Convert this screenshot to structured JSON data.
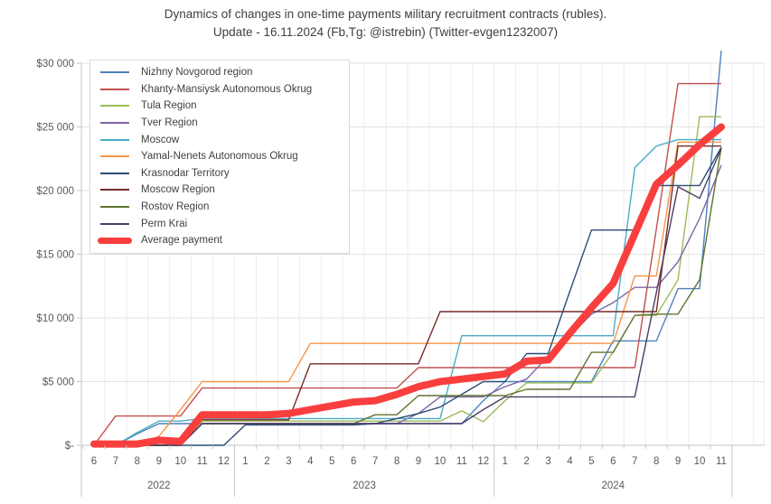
{
  "title": {
    "line1": "Dynamics of changes in one-time payments мilitary recruitment contracts (rubles).",
    "line2": "Update - 16.11.2024 (Fb,Tg: @istrebin) (Twitter-evgen1232007)"
  },
  "colors": {
    "grid_h": "#e3e3e3",
    "grid_v": "#ededed",
    "axis": "#c6c6c6",
    "axis_text": "#595959",
    "average_red": "#f93e3e"
  },
  "chart_data": {
    "type": "line",
    "title": "Dynamics of changes in one-time payments мilitary recruitment contracts (rubles). Update - 16.11.2024",
    "xlabel": "",
    "ylabel": "",
    "ylim": [
      0,
      30000
    ],
    "grid": true,
    "legend_position": "top-left",
    "y_axis": {
      "ticks": [
        {
          "label": "$30 000",
          "value": 30000
        },
        {
          "label": "$25 000",
          "value": 25000
        },
        {
          "label": "$20 000",
          "value": 20000
        },
        {
          "label": "$15 000",
          "value": 15000
        },
        {
          "label": "$10 000",
          "value": 10000
        },
        {
          "label": "$5 000",
          "value": 5000
        },
        {
          "label": "$-",
          "value": 0
        }
      ]
    },
    "x_axis": {
      "groups": [
        {
          "year": "2022",
          "months": [
            "6",
            "7",
            "8",
            "9",
            "10",
            "11",
            "12"
          ]
        },
        {
          "year": "2023",
          "months": [
            "1",
            "2",
            "3",
            "4",
            "5",
            "6",
            "7",
            "8",
            "9",
            "10",
            "11",
            "12"
          ]
        },
        {
          "year": "2024",
          "months": [
            "1",
            "2",
            "3",
            "4",
            "5",
            "6",
            "7",
            "8",
            "9",
            "10",
            "11"
          ]
        }
      ]
    },
    "series": [
      {
        "name": "Nizhny Novgorod region",
        "color": "#4f81bd",
        "thick": false,
        "values": [
          0,
          0,
          900,
          1700,
          1700,
          1700,
          1700,
          1700,
          1700,
          1700,
          1700,
          1700,
          1700,
          1700,
          1700,
          1700,
          1700,
          1700,
          3500,
          5000,
          5000,
          5000,
          5000,
          5000,
          8200,
          8200,
          8200,
          12300,
          12300,
          31000
        ]
      },
      {
        "name": "Khanty-Mansiysk Autonomous Okrug",
        "color": "#c0504d",
        "thick": false,
        "values": [
          0,
          2300,
          2300,
          2300,
          2300,
          4500,
          4500,
          4500,
          4500,
          4500,
          4500,
          4500,
          4500,
          4500,
          4500,
          6100,
          6100,
          6100,
          6100,
          6100,
          6100,
          6100,
          6100,
          6100,
          6100,
          6100,
          17000,
          28400,
          28400,
          28400
        ]
      },
      {
        "name": "Tula Region",
        "color": "#9bbb59",
        "thick": false,
        "values": [
          0,
          0,
          0,
          0,
          0,
          1900,
          1900,
          1900,
          1900,
          1900,
          1900,
          1900,
          1900,
          1900,
          1900,
          1900,
          1900,
          2700,
          1850,
          3500,
          4900,
          4900,
          4900,
          4900,
          7300,
          10200,
          10200,
          13000,
          25800,
          25800
        ]
      },
      {
        "name": "Tver Region",
        "color": "#8064a2",
        "thick": false,
        "values": [
          0,
          0,
          0,
          0,
          0,
          1700,
          1700,
          1700,
          1700,
          1700,
          1700,
          1700,
          1700,
          1700,
          1700,
          2500,
          3800,
          3800,
          3800,
          4600,
          5200,
          7000,
          8600,
          10300,
          11200,
          12400,
          12400,
          14400,
          17800,
          22000
        ]
      },
      {
        "name": "Moscow",
        "color": "#4bacc6",
        "thick": false,
        "values": [
          0,
          0,
          1000,
          1900,
          1900,
          2100,
          2100,
          2100,
          2100,
          2100,
          2100,
          2100,
          2100,
          2100,
          2100,
          2100,
          2100,
          8600,
          8600,
          8600,
          8600,
          8600,
          8600,
          8600,
          8600,
          21800,
          23500,
          24000,
          24000,
          24000
        ]
      },
      {
        "name": "Yamal-Nenets Autonomous Okrug",
        "color": "#f79646",
        "thick": false,
        "values": [
          0,
          0,
          0,
          700,
          2800,
          5000,
          5000,
          5000,
          5000,
          5000,
          8000,
          8000,
          8000,
          8000,
          8000,
          8000,
          8000,
          8000,
          8000,
          8000,
          8000,
          8000,
          8000,
          8000,
          8000,
          13300,
          13300,
          23800,
          23800,
          23800
        ]
      },
      {
        "name": "Krasnodar Territory",
        "color": "#2c4d75",
        "thick": false,
        "values": [
          0,
          0,
          0,
          0,
          0,
          0,
          0,
          1600,
          1600,
          1600,
          1600,
          1600,
          1600,
          1700,
          2100,
          2500,
          3000,
          4000,
          5000,
          5000,
          7200,
          7200,
          12100,
          16900,
          16900,
          16900,
          20400,
          20400,
          20400,
          23400
        ]
      },
      {
        "name": "Moscow Region",
        "color": "#772c2a",
        "thick": false,
        "values": [
          0,
          0,
          0,
          0,
          0,
          2000,
          2000,
          2000,
          2000,
          2000,
          6400,
          6400,
          6400,
          6400,
          6400,
          6400,
          10500,
          10500,
          10500,
          10500,
          10500,
          10500,
          10500,
          10500,
          10500,
          10500,
          10500,
          23500,
          23500,
          23500
        ]
      },
      {
        "name": "Rostov Region",
        "color": "#5f7530",
        "thick": false,
        "values": [
          0,
          0,
          0,
          0,
          0,
          1700,
          1700,
          1700,
          1700,
          1700,
          1700,
          1700,
          1700,
          2400,
          2400,
          3900,
          3900,
          3900,
          3900,
          3900,
          4400,
          4400,
          4400,
          7300,
          7300,
          10200,
          10300,
          10300,
          13000,
          23400
        ]
      },
      {
        "name": "Perm Krai",
        "color": "#4d3b62",
        "thick": false,
        "values": [
          0,
          0,
          0,
          0,
          0,
          1700,
          1700,
          1700,
          1700,
          1700,
          1700,
          1700,
          1700,
          1700,
          1700,
          1700,
          1700,
          1700,
          2800,
          3800,
          3800,
          3800,
          3800,
          3800,
          3800,
          3800,
          12000,
          20300,
          19400,
          23300
        ]
      },
      {
        "name": "Average payment",
        "color": "#f93e3e",
        "thick": true,
        "values": [
          100,
          100,
          100,
          400,
          300,
          2400,
          2400,
          2400,
          2400,
          2500,
          2800,
          3100,
          3400,
          3500,
          4000,
          4600,
          5000,
          5200,
          5400,
          5600,
          6600,
          6700,
          8800,
          10800,
          12700,
          16600,
          20500,
          22000,
          23600,
          25000
        ]
      }
    ]
  }
}
